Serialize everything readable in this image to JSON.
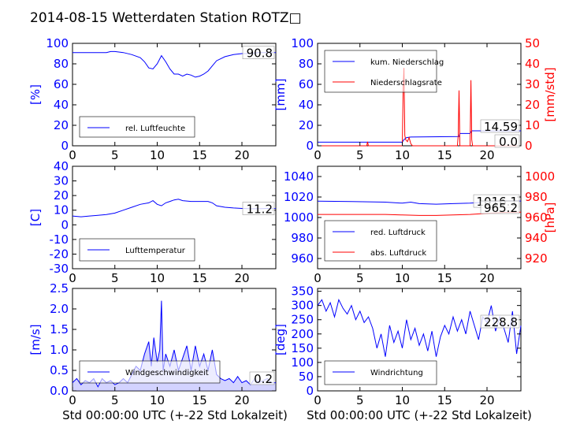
{
  "title": "2014-08-15 Wetterdaten Station ROTZ□",
  "xlabel": "Std 00:00:00 UTC (+-22 Std Lokalzeit)",
  "x_ticks": [
    0,
    5,
    10,
    15,
    20
  ],
  "colors": {
    "left": "#0000ff",
    "right": "#ff0000",
    "wind_fill": "#8080ff"
  },
  "chart_data": [
    {
      "id": "humidity",
      "type": "line",
      "ylabel": "[%]",
      "ylim": [
        0,
        100
      ],
      "yticks": [
        0,
        20,
        40,
        60,
        80,
        100
      ],
      "xlim": [
        0,
        24
      ],
      "grid": false,
      "legend_placement": "lower-left",
      "last_value_label": "90.8",
      "series": [
        {
          "name": "rel. Luftfeuchte",
          "axis": "left",
          "x": [
            0,
            1,
            2,
            3,
            4,
            4.5,
            5,
            6,
            7,
            8,
            8.5,
            9,
            9.5,
            10,
            10.5,
            11,
            11.5,
            12,
            12.5,
            13,
            13.5,
            14,
            14.5,
            15,
            15.5,
            16,
            17,
            18,
            19,
            20,
            21,
            22,
            23,
            24
          ],
          "y": [
            91,
            91,
            91,
            91,
            91,
            92,
            92,
            91,
            89,
            86,
            82,
            76,
            75,
            80,
            88,
            82,
            75,
            70,
            70,
            68,
            70,
            69,
            67,
            68,
            70,
            73,
            83,
            87,
            89,
            90,
            90,
            91,
            91,
            91
          ]
        }
      ]
    },
    {
      "id": "precipitation",
      "type": "line",
      "ylabel": "[mm]",
      "ylabel_right": "[mm/std]",
      "ylim": [
        0,
        100
      ],
      "yticks": [
        0,
        20,
        40,
        60,
        80,
        100
      ],
      "ylim_right": [
        0,
        50
      ],
      "yticks_right": [
        0,
        10,
        20,
        30,
        40,
        50
      ],
      "xlim": [
        0,
        24
      ],
      "grid": false,
      "legend_placement": "upper-left",
      "last_value_label": "14.59",
      "last_value_label_right": "0.0",
      "series": [
        {
          "name": "kum. Niederschlag",
          "axis": "left",
          "x": [
            0,
            10,
            10.2,
            10.5,
            11,
            16.7,
            16.8,
            18,
            18.2,
            24
          ],
          "y": [
            3.5,
            3.5,
            6,
            8,
            8.5,
            9,
            12,
            12,
            14.59,
            14.59
          ]
        },
        {
          "name": "Niederschlagsrate",
          "axis": "right",
          "x": [
            0,
            5.8,
            5.9,
            6.0,
            10.0,
            10.1,
            10.2,
            10.3,
            10.4,
            10.6,
            10.8,
            11.0,
            11.2,
            16.5,
            16.6,
            16.7,
            16.8,
            18.0,
            18.1,
            18.2,
            18.3,
            24
          ],
          "y": [
            0,
            0,
            2,
            0,
            0,
            28,
            38,
            5,
            3,
            2,
            4,
            1,
            0,
            0,
            5,
            27,
            0,
            0,
            32,
            3,
            0,
            0
          ]
        }
      ]
    },
    {
      "id": "temperature",
      "type": "line",
      "ylabel": "[C]",
      "ylim": [
        -30,
        40
      ],
      "yticks": [
        -30,
        -20,
        -10,
        0,
        10,
        20,
        30,
        40
      ],
      "xlim": [
        0,
        24
      ],
      "grid": false,
      "legend_placement": "lower-left",
      "last_value_label": "11.2",
      "series": [
        {
          "name": "Lufttemperatur",
          "axis": "left",
          "x": [
            0,
            1,
            2,
            3,
            4,
            5,
            6,
            7,
            8,
            9,
            9.5,
            10,
            10.5,
            11,
            11.5,
            12,
            12.5,
            13,
            14,
            15,
            16,
            16.5,
            17,
            18,
            19,
            20,
            21,
            22,
            23,
            24
          ],
          "y": [
            6,
            5.5,
            6,
            6.5,
            7,
            8,
            10,
            12,
            14,
            15,
            16.5,
            14,
            13,
            15,
            16,
            17,
            17.5,
            16.5,
            16,
            16,
            16,
            15,
            13,
            12,
            11.5,
            11.2,
            11,
            11,
            11.2,
            11.2
          ]
        }
      ]
    },
    {
      "id": "pressure",
      "type": "line",
      "ylim": [
        950,
        1050
      ],
      "yticks": [
        960,
        980,
        1000,
        1020,
        1040
      ],
      "ylabel_right": "[hPa]",
      "ylim_right": [
        910,
        1010
      ],
      "yticks_right": [
        920,
        940,
        960,
        980,
        1000
      ],
      "xlim": [
        0,
        24
      ],
      "grid": false,
      "legend_placement": "lower-left",
      "last_value_label": "1016.1",
      "last_value_label_right": "965.2",
      "series": [
        {
          "name": "red. Luftdruck",
          "axis": "left",
          "x": [
            0,
            4,
            8,
            10,
            11,
            12,
            14,
            16,
            18,
            20,
            22,
            24
          ],
          "y": [
            1016,
            1015.5,
            1015,
            1014,
            1015,
            1013.5,
            1013,
            1013.5,
            1014,
            1015,
            1016,
            1016.1
          ]
        },
        {
          "name": "abs. Luftdruck",
          "axis": "right",
          "x": [
            0,
            4,
            8,
            10,
            12,
            14,
            16,
            18,
            20,
            22,
            24
          ],
          "y": [
            963,
            963,
            963,
            962.5,
            962,
            962,
            962.5,
            963,
            964,
            965,
            965.2
          ]
        }
      ]
    },
    {
      "id": "windspeed",
      "type": "line",
      "ylabel": "[m/s]",
      "ylim": [
        0,
        2.5
      ],
      "yticks": [
        0,
        0.5,
        1.0,
        1.5,
        2.0,
        2.5
      ],
      "xlim": [
        0,
        24
      ],
      "grid": false,
      "legend_placement": "lower-center",
      "last_value_label": "0.2",
      "series": [
        {
          "name": "Windgeschwindigkeit",
          "axis": "left",
          "x": [
            0,
            0.5,
            1,
            1.5,
            2,
            2.5,
            3,
            3.5,
            4,
            4.5,
            5,
            5.5,
            6,
            6.5,
            7,
            7.5,
            8,
            8.5,
            9,
            9.3,
            9.6,
            10,
            10.3,
            10.5,
            10.7,
            11,
            11.5,
            12,
            12.5,
            13,
            13.5,
            14,
            14.5,
            15,
            15.5,
            16,
            16.5,
            17,
            17.5,
            18,
            18.5,
            19,
            19.5,
            20,
            20.5,
            21,
            21.5,
            22,
            22.5,
            23,
            23.5,
            24
          ],
          "y": [
            0.2,
            0.3,
            0.15,
            0.25,
            0.2,
            0.3,
            0.1,
            0.3,
            0.2,
            0.25,
            0.15,
            0.2,
            0.3,
            0.2,
            0.4,
            0.6,
            0.5,
            0.9,
            1.2,
            0.6,
            1.3,
            0.7,
            1.0,
            2.2,
            0.5,
            0.9,
            0.6,
            1.0,
            0.5,
            0.8,
            1.1,
            0.5,
            1.1,
            0.6,
            0.9,
            0.5,
            1.0,
            0.4,
            0.3,
            0.25,
            0.3,
            0.2,
            0.35,
            0.2,
            0.25,
            0.15,
            0.3,
            0.2,
            0.25,
            0.3,
            0.2,
            0.2
          ]
        }
      ]
    },
    {
      "id": "winddirection",
      "type": "line",
      "ylabel": "[deg]",
      "ylim": [
        0,
        360
      ],
      "yticks": [
        0,
        50,
        100,
        150,
        200,
        250,
        300,
        350
      ],
      "xlim": [
        0,
        24
      ],
      "grid": false,
      "legend_placement": "lower-left",
      "last_value_label": "228.8",
      "series": [
        {
          "name": "Windrichtung",
          "axis": "left",
          "x": [
            0,
            0.5,
            1,
            1.5,
            2,
            2.5,
            3,
            3.5,
            4,
            4.5,
            5,
            5.5,
            6,
            6.5,
            7,
            7.5,
            8,
            8.5,
            9,
            9.5,
            10,
            10.5,
            11,
            11.5,
            12,
            12.5,
            13,
            13.5,
            14,
            14.5,
            15,
            15.5,
            16,
            16.5,
            17,
            17.5,
            18,
            18.5,
            19,
            19.5,
            20,
            20.5,
            21,
            21.5,
            22,
            22.5,
            23,
            23.5,
            24
          ],
          "y": [
            300,
            320,
            280,
            310,
            260,
            320,
            290,
            270,
            300,
            250,
            280,
            240,
            260,
            220,
            150,
            200,
            120,
            230,
            170,
            210,
            150,
            250,
            180,
            220,
            160,
            200,
            140,
            210,
            120,
            190,
            230,
            200,
            260,
            210,
            250,
            200,
            280,
            230,
            180,
            260,
            240,
            300,
            210,
            260,
            220,
            170,
            280,
            130,
            229
          ]
        }
      ]
    }
  ]
}
